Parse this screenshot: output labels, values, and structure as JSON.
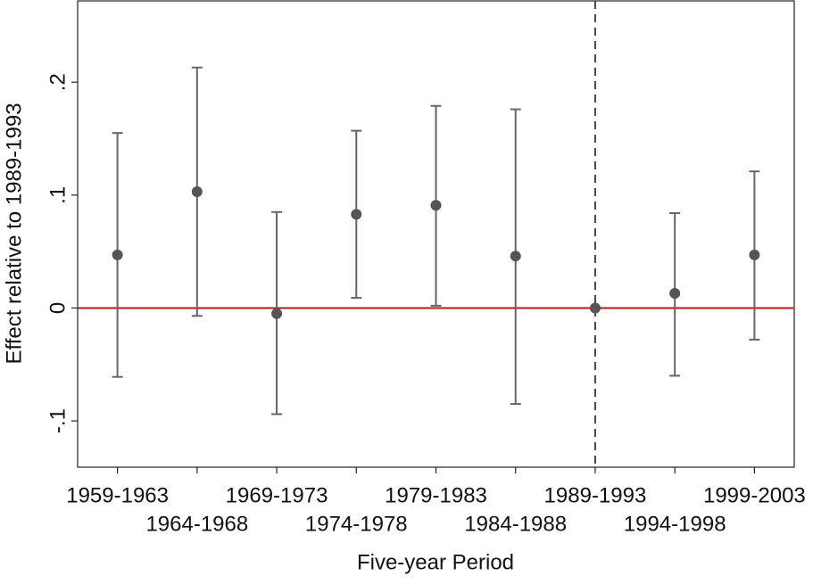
{
  "chart_data": {
    "type": "errorbar",
    "xlabel": "Five-year Period",
    "ylabel": "Effect relative to 1989-1993",
    "categories": [
      "1959-1963",
      "1964-1968",
      "1969-1973",
      "1974-1978",
      "1979-1983",
      "1984-1988",
      "1989-1993",
      "1994-1998",
      "1999-2003"
    ],
    "values": [
      0.047,
      0.103,
      -0.005,
      0.083,
      0.091,
      0.046,
      0,
      0.013,
      0.047
    ],
    "lower": [
      -0.061,
      -0.007,
      -0.094,
      0.009,
      0.002,
      -0.085,
      null,
      -0.06,
      -0.028
    ],
    "upper": [
      0.155,
      0.213,
      0.085,
      0.157,
      0.179,
      0.176,
      null,
      0.084,
      0.121
    ],
    "color": "#555555",
    "errorbar_color": "#666666",
    "ylim": [
      -0.141,
      0.272
    ],
    "yticks": [
      {
        "value": -0.1,
        "label": "-.1"
      },
      0,
      {
        "value": 0.1,
        "label": ".1"
      },
      {
        "value": 0.2,
        "label": ".2"
      }
    ],
    "hline": 0,
    "hline_color": "#b01c1c",
    "vline_at": "1989-1993",
    "vline_color": "#444444",
    "grid": false
  }
}
